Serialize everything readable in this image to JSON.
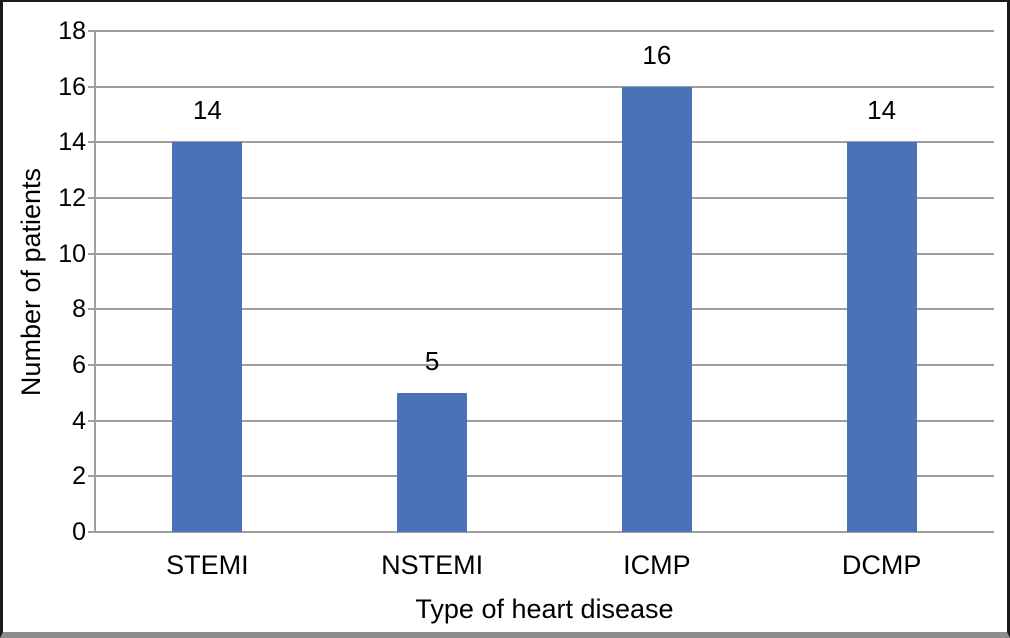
{
  "figure": {
    "background": "#ffffff",
    "frame_color": "#1b1b1b",
    "bottom_edge_color": "#8d8d8d"
  },
  "chart_data": {
    "type": "bar",
    "title": "",
    "categories": [
      "STEMI",
      "NSTEMI",
      "ICMP",
      "DCMP"
    ],
    "values": [
      14,
      5,
      16,
      14
    ],
    "xlabel": "Type of heart disease",
    "ylabel": "Number of patients",
    "ylim": [
      0,
      18
    ],
    "yticks": [
      0,
      2,
      4,
      6,
      8,
      10,
      12,
      14,
      16,
      18
    ],
    "grid": "horizontal",
    "legend": "none",
    "bar_color": "#4a72b6",
    "gridline_color": "#9e9e9e",
    "axis_color": "#9e9e9e",
    "text_color": "#000000"
  }
}
